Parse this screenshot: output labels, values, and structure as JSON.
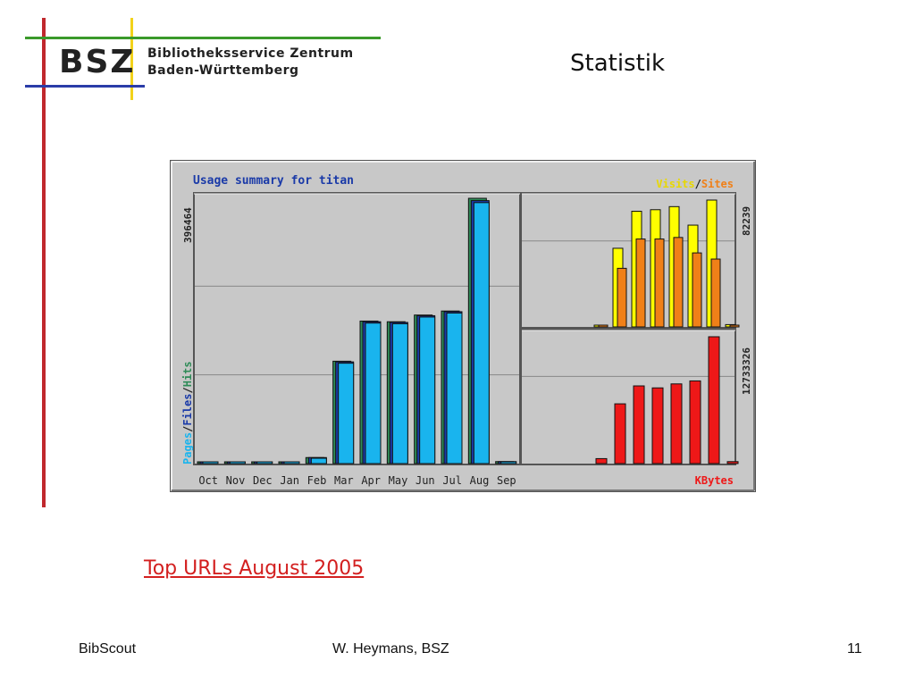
{
  "logo": {
    "abbr": "BSZ",
    "org_line1": "Bibliotheksservice Zentrum",
    "org_line2": "Baden-Württemberg"
  },
  "slide_title": "Statistik",
  "link_text": "Top URLs August 2005",
  "footer": {
    "left": "BibScout",
    "center": "W. Heymans, BSZ",
    "right": "11"
  },
  "colors": {
    "hits": "#2e8b57",
    "files": "#1a3aa8",
    "pages": "#19b4ee",
    "visits": "#ffff00",
    "sites": "#f08018",
    "kbytes": "#ee1818"
  },
  "chart_data": [
    {
      "type": "bar",
      "title": "Usage summary for titan",
      "ylabel_parts": [
        "Pages",
        "/",
        "Files",
        "/",
        "Hits"
      ],
      "ymax_label": "396464",
      "ylim": [
        0,
        396464
      ],
      "categories": [
        "Oct",
        "Nov",
        "Dec",
        "Jan",
        "Feb",
        "Mar",
        "Apr",
        "May",
        "Jun",
        "Jul",
        "Aug",
        "Sep"
      ],
      "series": [
        {
          "name": "Hits",
          "values": [
            0,
            0,
            0,
            0,
            9000,
            153000,
            213000,
            212000,
            222000,
            228000,
            396464,
            3000
          ]
        },
        {
          "name": "Files",
          "values": [
            0,
            0,
            0,
            0,
            9000,
            152000,
            212000,
            211000,
            221000,
            227000,
            393000,
            3000
          ]
        },
        {
          "name": "Pages",
          "values": [
            0,
            0,
            0,
            0,
            8000,
            150000,
            210000,
            209000,
            219000,
            225000,
            390000,
            2000
          ]
        }
      ],
      "grid": true
    },
    {
      "type": "bar",
      "legend_parts": [
        "Visits",
        "/",
        "Sites"
      ],
      "ymax_label": "82239",
      "ylim": [
        0,
        82239
      ],
      "series": [
        {
          "name": "Visits",
          "values": [
            1000,
            51000,
            75000,
            76000,
            78000,
            66000,
            82239,
            1500
          ]
        },
        {
          "name": "Sites",
          "values": [
            1000,
            38000,
            57000,
            57000,
            58000,
            48000,
            44000,
            1000
          ]
        }
      ],
      "grid": true
    },
    {
      "type": "bar",
      "legend": "KBytes",
      "ymax_label": "12733326",
      "ylim": [
        0,
        12733326
      ],
      "series": [
        {
          "name": "KBytes",
          "values": [
            500000,
            6000000,
            7800000,
            7600000,
            8000000,
            8300000,
            12733326,
            200000
          ]
        }
      ],
      "grid": true
    }
  ]
}
